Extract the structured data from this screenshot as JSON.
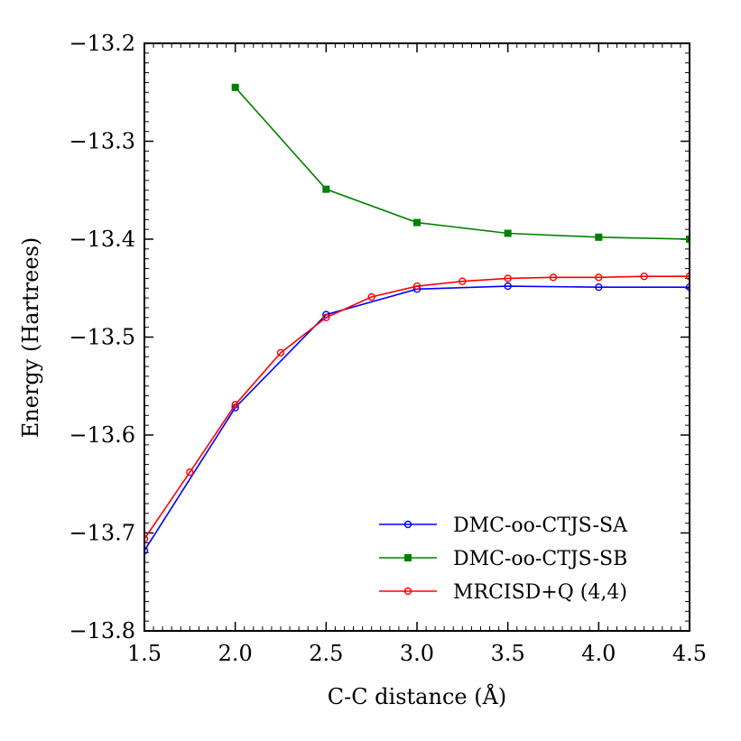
{
  "chart_data": {
    "type": "line",
    "title": "",
    "xlabel": "C-C distance (Å)",
    "ylabel": "Energy (Hartrees)",
    "xlim": [
      1.5,
      4.5
    ],
    "ylim": [
      -13.8,
      -13.2
    ],
    "xticks": [
      1.5,
      2.0,
      2.5,
      3.0,
      3.5,
      4.0,
      4.5
    ],
    "xtick_labels": [
      "1.5",
      "2.0",
      "2.5",
      "3.0",
      "3.5",
      "4.0",
      "4.5"
    ],
    "yticks": [
      -13.8,
      -13.7,
      -13.6,
      -13.5,
      -13.4,
      -13.3,
      -13.2
    ],
    "ytick_labels": [
      "−13.8",
      "−13.7",
      "−13.6",
      "−13.5",
      "−13.4",
      "−13.3",
      "−13.2"
    ],
    "grid": false,
    "legend_position": "bottom-right",
    "series": [
      {
        "name": "DMC-oo-CTJS-SA",
        "color": "#0000ff",
        "marker": "circle-open",
        "x": [
          1.5,
          2.0,
          2.5,
          3.0,
          3.5,
          4.0,
          4.5
        ],
        "y": [
          -13.718,
          -13.572,
          -13.477,
          -13.451,
          -13.448,
          -13.449,
          -13.449
        ]
      },
      {
        "name": "DMC-oo-CTJS-SB",
        "color": "#008000",
        "marker": "square-filled",
        "x": [
          2.0,
          2.5,
          3.0,
          3.5,
          4.0,
          4.5
        ],
        "y": [
          -13.245,
          -13.349,
          -13.383,
          -13.394,
          -13.398,
          -13.4
        ]
      },
      {
        "name": "MRCISD+Q (4,4)",
        "color": "#ff0000",
        "marker": "circle-open",
        "x": [
          1.5,
          1.75,
          2.0,
          2.25,
          2.5,
          2.75,
          3.0,
          3.25,
          3.5,
          3.75,
          4.0,
          4.25,
          4.5
        ],
        "y": [
          -13.706,
          -13.638,
          -13.569,
          -13.516,
          -13.48,
          -13.459,
          -13.448,
          -13.443,
          -13.44,
          -13.439,
          -13.439,
          -13.438,
          -13.438
        ]
      }
    ]
  }
}
